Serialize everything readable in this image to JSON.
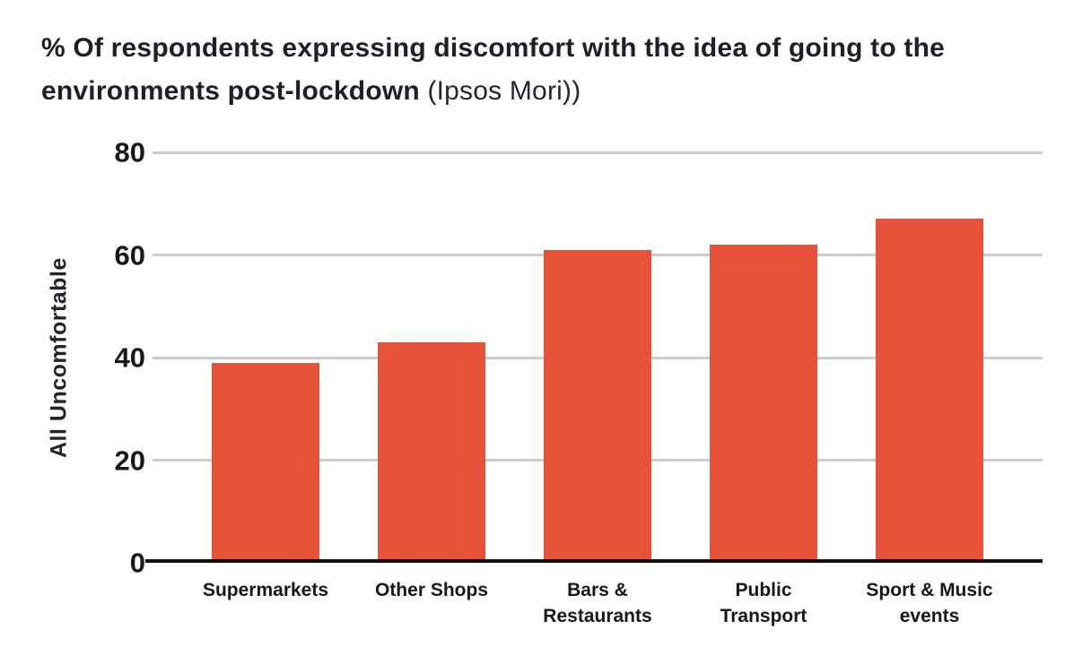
{
  "title": {
    "bold": "% Of respondents expressing discomfort with the idea of going to the environments post-lockdown",
    "light": " (Ipsos Mori))"
  },
  "chart_data": {
    "type": "bar",
    "title": "% Of respondents expressing discomfort with the idea of going to the environments post-lockdown",
    "subtitle": "(Ipsos Mori))",
    "categories": [
      "Supermarkets",
      "Other Shops",
      "Bars &\nRestaurants",
      "Public\nTransport",
      "Sport & Music\nevents"
    ],
    "values": [
      39,
      43,
      61,
      62,
      67
    ],
    "xlabel": "",
    "ylabel": "All Uncomfortable",
    "ylim": [
      0,
      80
    ],
    "yticks": [
      0,
      20,
      40,
      60,
      80
    ],
    "grid": true,
    "legend": "none",
    "colors": {
      "bar": "#e8523a",
      "gridline": "#cccccc",
      "axis": "#111111",
      "text": "#1d2026"
    }
  }
}
